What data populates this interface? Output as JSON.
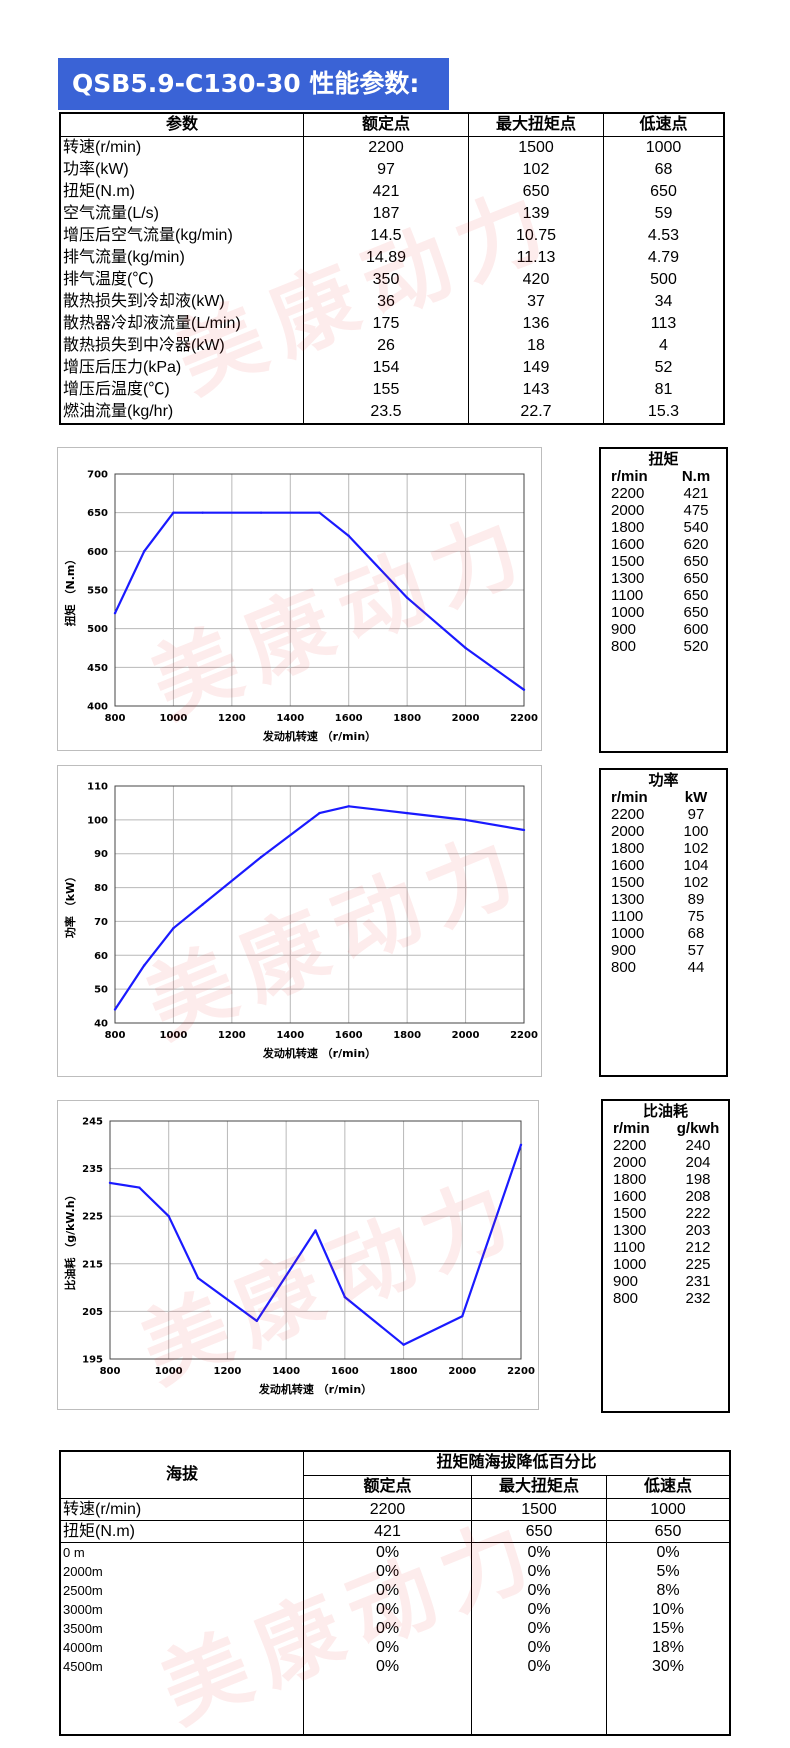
{
  "title": "QSB5.9-C130-30 性能参数:",
  "watermark": "美康动力",
  "accent_color": "#3a63d6",
  "line_color": "#1a1aff",
  "perf_table": {
    "headers": [
      "参数",
      "额定点",
      "最大扭矩点",
      "低速点"
    ],
    "rows": [
      [
        "转速(r/min)",
        "2200",
        "1500",
        "1000"
      ],
      [
        "功率(kW)",
        "97",
        "102",
        "68"
      ],
      [
        "扭矩(N.m)",
        "421",
        "650",
        "650"
      ],
      [
        "空气流量(L/s)",
        "187",
        "139",
        "59"
      ],
      [
        "增压后空气流量(kg/min)",
        "14.5",
        "10.75",
        "4.53"
      ],
      [
        "排气流量(kg/min)",
        "14.89",
        "11.13",
        "4.79"
      ],
      [
        "排气温度(℃)",
        "350",
        "420",
        "500"
      ],
      [
        "散热损失到冷却液(kW)",
        "36",
        "37",
        "34"
      ],
      [
        "散热器冷却液流量(L/min)",
        "175",
        "136",
        "113"
      ],
      [
        "散热损失到中冷器(kW)",
        "26",
        "18",
        "4"
      ],
      [
        "增压后压力(kPa)",
        "154",
        "149",
        "52"
      ],
      [
        "增压后温度(℃)",
        "155",
        "143",
        "81"
      ],
      [
        "燃油流量(kg/hr)",
        "23.5",
        "22.7",
        "15.3"
      ]
    ]
  },
  "chart_data": [
    {
      "type": "line",
      "xlabel": "发动机转速 （r/min）",
      "ylabel": "扭矩 （N.m）",
      "xlim": [
        800,
        2200
      ],
      "ylim": [
        400,
        700
      ],
      "xticks": [
        800,
        1000,
        1200,
        1400,
        1600,
        1800,
        2000,
        2200
      ],
      "yticks": [
        400,
        450,
        500,
        550,
        600,
        650,
        700
      ],
      "grid": true,
      "x": [
        800,
        900,
        1000,
        1100,
        1300,
        1500,
        1600,
        1800,
        2000,
        2200
      ],
      "y": [
        520,
        600,
        650,
        650,
        650,
        650,
        620,
        540,
        475,
        421
      ]
    },
    {
      "type": "line",
      "xlabel": "发动机转速 （r/min）",
      "ylabel": "功率 （kW）",
      "xlim": [
        800,
        2200
      ],
      "ylim": [
        40,
        110
      ],
      "xticks": [
        800,
        1000,
        1200,
        1400,
        1600,
        1800,
        2000,
        2200
      ],
      "yticks": [
        40,
        50,
        60,
        70,
        80,
        90,
        100,
        110
      ],
      "grid": true,
      "x": [
        800,
        900,
        1000,
        1100,
        1300,
        1500,
        1600,
        1800,
        2000,
        2200
      ],
      "y": [
        44,
        57,
        68,
        75,
        89,
        102,
        104,
        102,
        100,
        97
      ]
    },
    {
      "type": "line",
      "xlabel": "发动机转速 （r/min）",
      "ylabel": "比油耗 （g/kW.h）",
      "xlim": [
        800,
        2200
      ],
      "ylim": [
        195,
        245
      ],
      "xticks": [
        800,
        1000,
        1200,
        1400,
        1600,
        1800,
        2000,
        2200
      ],
      "yticks": [
        195,
        205,
        215,
        225,
        235,
        245
      ],
      "grid": true,
      "x": [
        800,
        900,
        1000,
        1100,
        1300,
        1500,
        1600,
        1800,
        2000,
        2200
      ],
      "y": [
        232,
        231,
        225,
        212,
        203,
        222,
        208,
        198,
        204,
        240
      ]
    }
  ],
  "side_tables": [
    {
      "title": "扭矩",
      "headers": [
        "r/min",
        "N.m"
      ],
      "rows": [
        [
          "2200",
          "421"
        ],
        [
          "2000",
          "475"
        ],
        [
          "1800",
          "540"
        ],
        [
          "1600",
          "620"
        ],
        [
          "1500",
          "650"
        ],
        [
          "1300",
          "650"
        ],
        [
          "1100",
          "650"
        ],
        [
          "1000",
          "650"
        ],
        [
          "900",
          "600"
        ],
        [
          "800",
          "520"
        ]
      ]
    },
    {
      "title": "功率",
      "headers": [
        "r/min",
        "kW"
      ],
      "rows": [
        [
          "2200",
          "97"
        ],
        [
          "2000",
          "100"
        ],
        [
          "1800",
          "102"
        ],
        [
          "1600",
          "104"
        ],
        [
          "1500",
          "102"
        ],
        [
          "1300",
          "89"
        ],
        [
          "1100",
          "75"
        ],
        [
          "1000",
          "68"
        ],
        [
          "900",
          "57"
        ],
        [
          "800",
          "44"
        ]
      ]
    },
    {
      "title": "比油耗",
      "headers": [
        "r/min",
        "g/kwh"
      ],
      "rows": [
        [
          "2200",
          "240"
        ],
        [
          "2000",
          "204"
        ],
        [
          "1800",
          "198"
        ],
        [
          "1600",
          "208"
        ],
        [
          "1500",
          "222"
        ],
        [
          "1300",
          "203"
        ],
        [
          "1100",
          "212"
        ],
        [
          "1000",
          "225"
        ],
        [
          "900",
          "231"
        ],
        [
          "800",
          "232"
        ]
      ]
    }
  ],
  "altitude_table": {
    "corner": "海拔",
    "group_header": "扭矩随海拔降低百分比",
    "sub_headers": [
      "额定点",
      "最大扭矩点",
      "低速点"
    ],
    "rows": [
      [
        "转速(r/min)",
        "2200",
        "1500",
        "1000"
      ],
      [
        "扭矩(N.m)",
        "421",
        "650",
        "650"
      ]
    ],
    "altitudes": [
      [
        "0 m",
        "0%",
        "0%",
        "0%"
      ],
      [
        "2000m",
        "0%",
        "0%",
        "5%"
      ],
      [
        "2500m",
        "0%",
        "0%",
        "8%"
      ],
      [
        "3000m",
        "0%",
        "0%",
        "10%"
      ],
      [
        "3500m",
        "0%",
        "0%",
        "15%"
      ],
      [
        "4000m",
        "0%",
        "0%",
        "18%"
      ],
      [
        "4500m",
        "0%",
        "0%",
        "30%"
      ]
    ]
  }
}
